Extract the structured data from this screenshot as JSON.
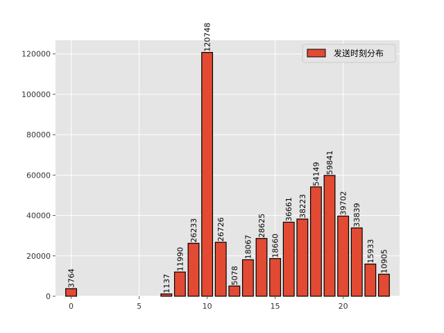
{
  "chart_data": {
    "type": "bar",
    "x": [
      0,
      7,
      8,
      9,
      10,
      11,
      12,
      13,
      14,
      15,
      16,
      17,
      18,
      19,
      20,
      21,
      22,
      23
    ],
    "values": [
      3764,
      1137,
      11990,
      26233,
      120748,
      26726,
      5078,
      18067,
      28625,
      18660,
      36661,
      38223,
      54149,
      59841,
      39702,
      33839,
      15933,
      10905
    ],
    "labels": [
      "3764",
      "1137",
      "11990",
      "26233",
      "120748",
      "26726",
      "5078",
      "18067",
      "28625",
      "18660",
      "36661",
      "38223",
      "54149",
      "59841",
      "39702",
      "33839",
      "15933",
      "10905"
    ],
    "series": [
      {
        "name": "发送时刻分布"
      }
    ],
    "xticks": [
      0,
      5,
      10,
      15,
      20
    ],
    "xtick_labels": [
      "0",
      "5",
      "10",
      "15",
      "20"
    ],
    "yticks": [
      0,
      20000,
      40000,
      60000,
      80000,
      100000,
      120000
    ],
    "ytick_labels": [
      "0",
      "20000",
      "40000",
      "60000",
      "80000",
      "100000",
      "120000"
    ],
    "xlim": [
      -1.15,
      24.15
    ],
    "ylim": [
      0,
      126785
    ],
    "grid": true,
    "legend_position": "top-right",
    "colors": {
      "bar_fill": "#E24A33",
      "bar_edge": "#000000",
      "axes_bg": "#E5E5E5",
      "grid": "#FFFFFF"
    }
  }
}
